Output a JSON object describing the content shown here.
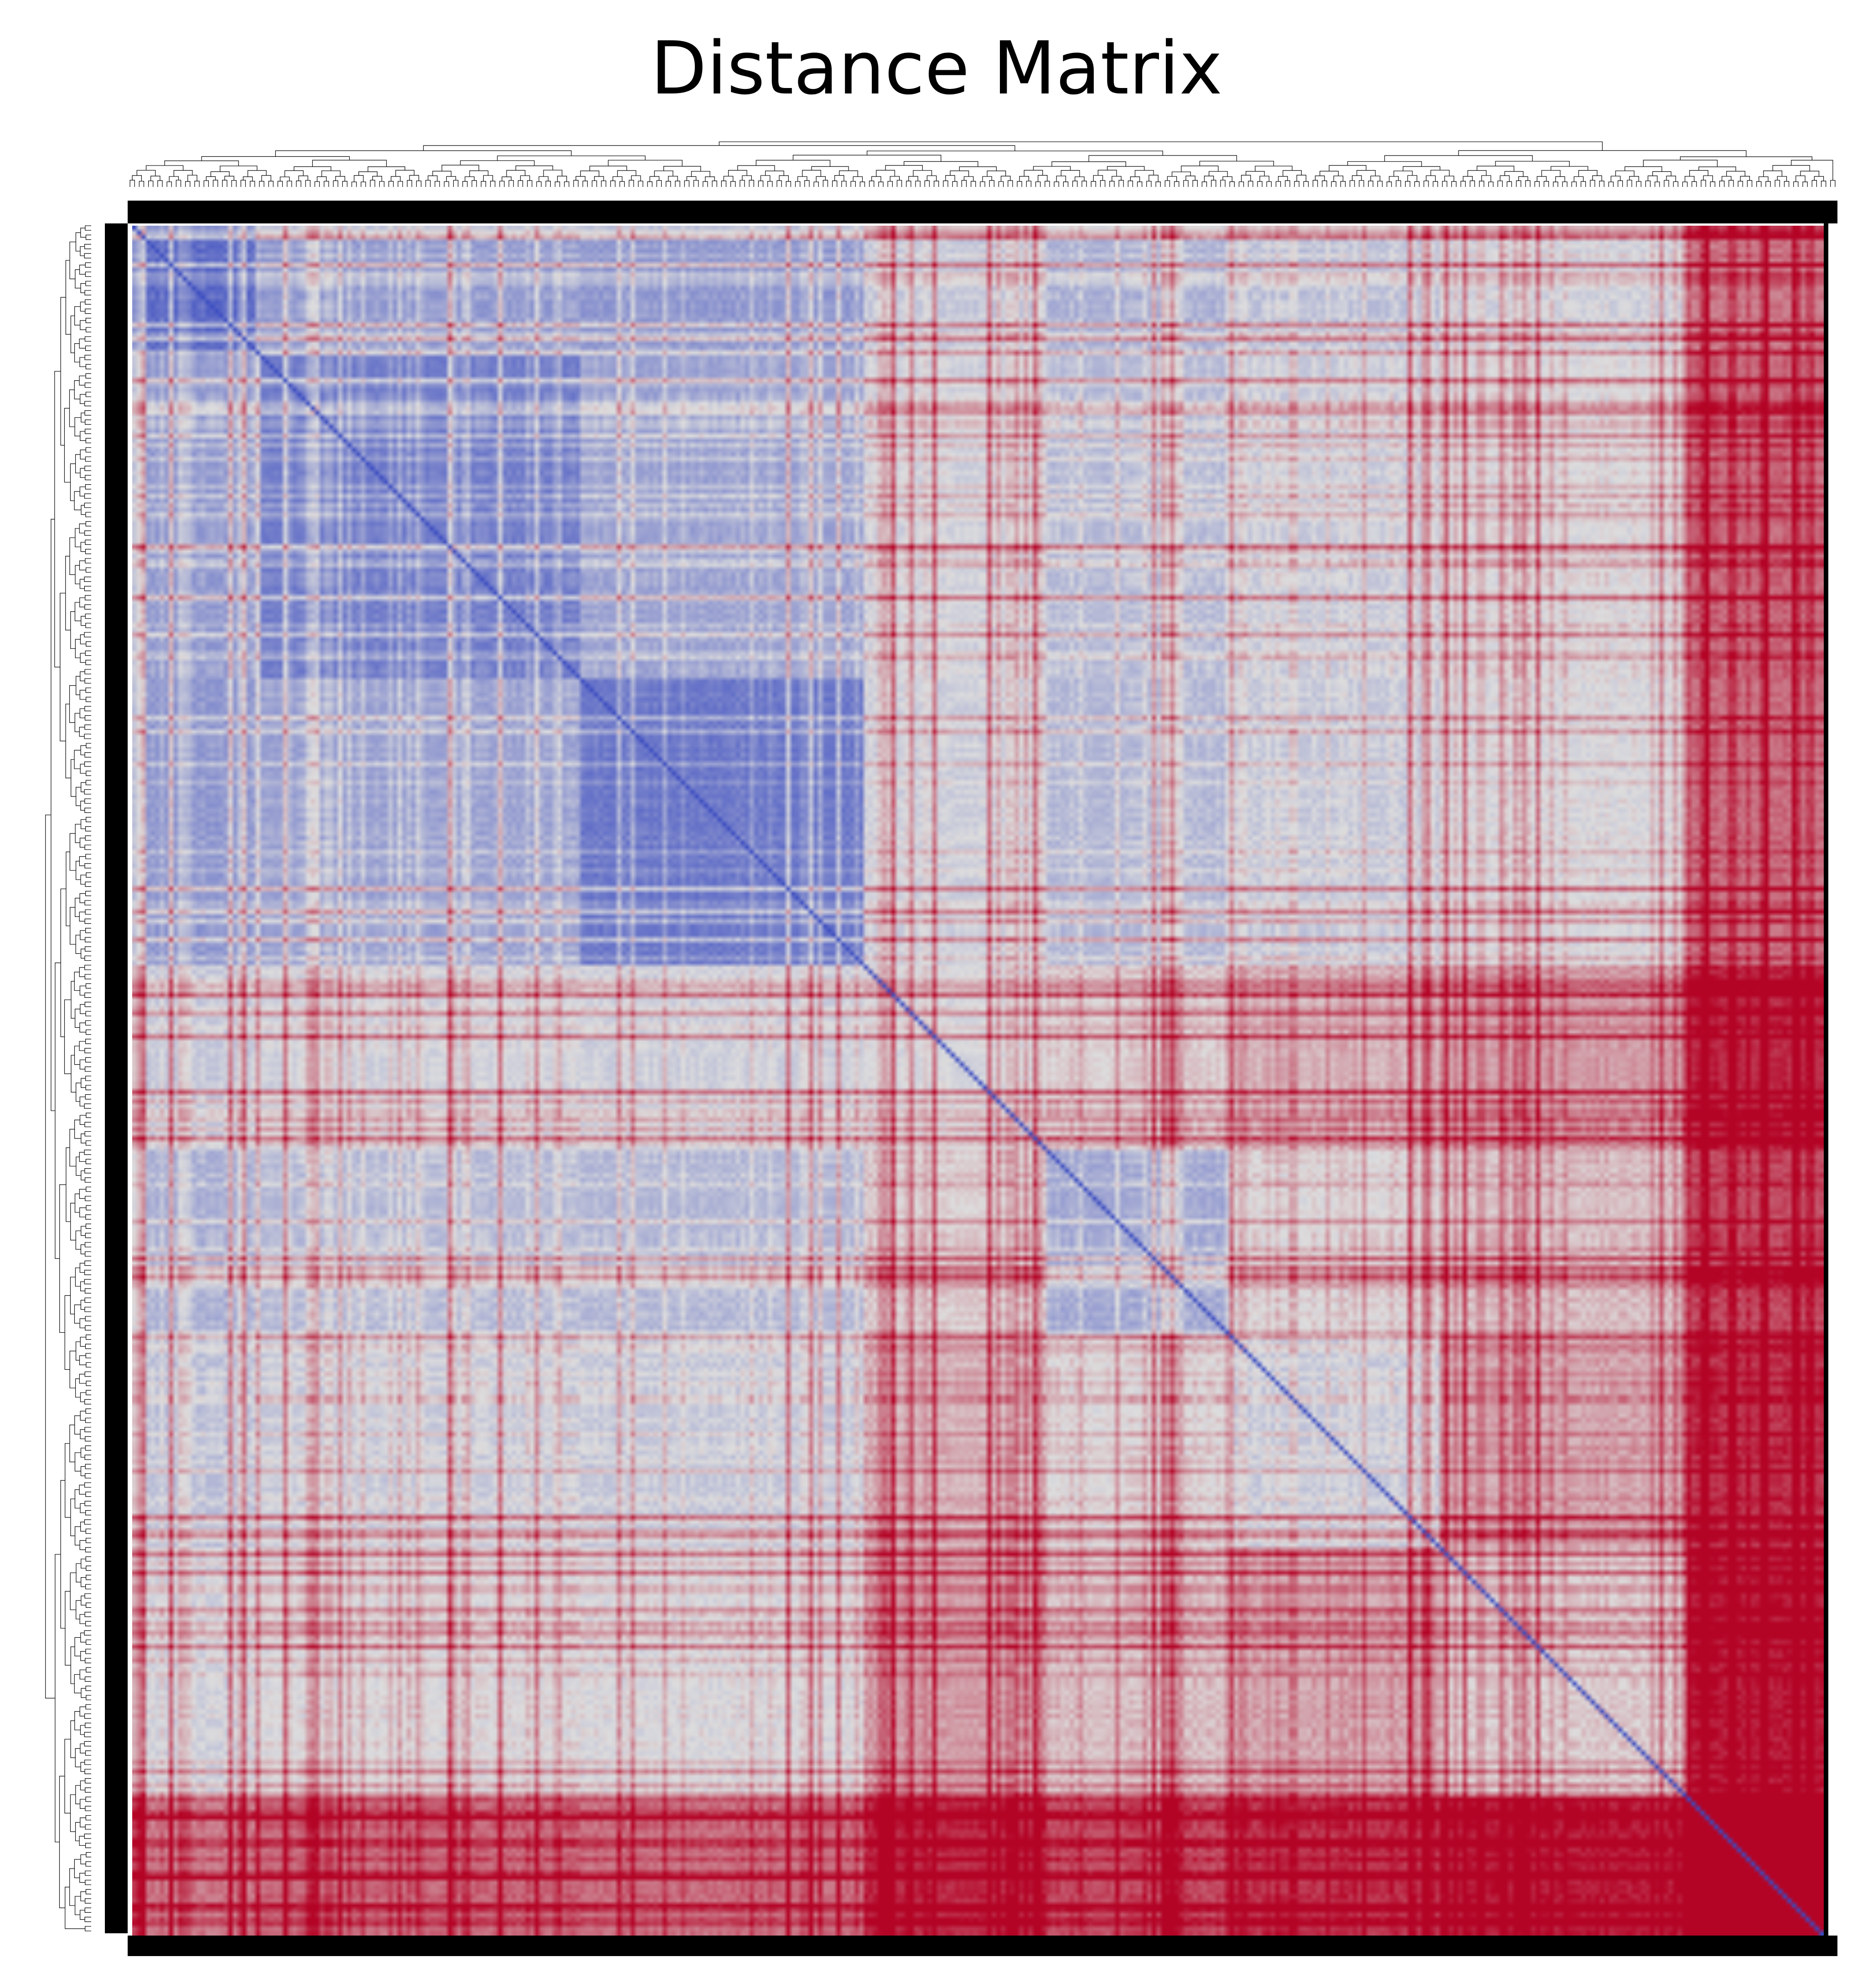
{
  "chart_data": {
    "type": "heatmap",
    "title": "Distance Matrix",
    "colormap": "coolwarm",
    "color_low": "#3b4cc0",
    "color_mid": "#dddddd",
    "color_high": "#b40426",
    "n_items": 370,
    "dendrograms": [
      "top",
      "left"
    ],
    "block_boundaries": [
      0,
      28,
      98,
      160,
      200,
      240,
      286,
      340,
      370
    ],
    "block_anomaly": [
      0.05,
      0.12,
      0.1,
      0.4,
      0.25,
      0.35,
      0.45,
      0.95
    ],
    "diagonal_value": 0.0,
    "within_block_value": 0.2,
    "between_block_value": 0.45,
    "value_range": [
      0,
      1
    ],
    "xlabel": "",
    "ylabel": "",
    "grid": false
  }
}
